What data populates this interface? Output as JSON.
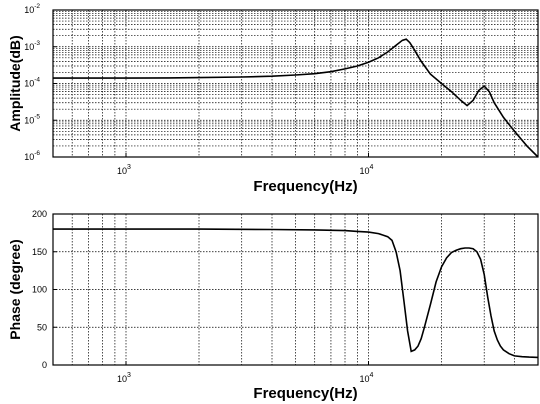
{
  "chart_data": [
    {
      "type": "line",
      "xlabel": "Frequency(Hz)",
      "ylabel": "Amplitude(dB)",
      "xscale": "log",
      "yscale": "log",
      "xlim": [
        500,
        50000
      ],
      "ylim": [
        1e-06,
        0.01
      ],
      "grid": true,
      "x_ticks": [
        {
          "value": 1000,
          "base": "10",
          "exp": "3"
        },
        {
          "value": 10000,
          "base": "10",
          "exp": "4"
        }
      ],
      "y_ticks": [
        {
          "value": 1e-06,
          "base": "10",
          "exp": "-6"
        },
        {
          "value": 1e-05,
          "base": "10",
          "exp": "-5"
        },
        {
          "value": 0.0001,
          "base": "10",
          "exp": "-4"
        },
        {
          "value": 0.001,
          "base": "10",
          "exp": "-3"
        },
        {
          "value": 0.01,
          "base": "10",
          "exp": "-2"
        }
      ],
      "series": [
        {
          "x": [
            500,
            700,
            1000,
            1500,
            2000,
            3000,
            4000,
            5000,
            6000,
            7000,
            8000,
            9000,
            10000,
            11000,
            12000,
            13000,
            13800,
            14300,
            14800,
            15500,
            16500,
            18000,
            20000,
            22000,
            24000,
            25500,
            27000,
            28500,
            30000,
            31500,
            33000,
            36000,
            40000,
            45000,
            50000
          ],
          "y": [
            0.00014,
            0.00014,
            0.00014,
            0.000142,
            0.000145,
            0.00015,
            0.000158,
            0.00017,
            0.000185,
            0.00021,
            0.00025,
            0.0003,
            0.00038,
            0.0005,
            0.00072,
            0.0011,
            0.0015,
            0.0016,
            0.0013,
            0.0008,
            0.0004,
            0.00018,
            0.0001,
            6e-05,
            3.5e-05,
            2.5e-05,
            3.5e-05,
            6.5e-05,
            8.5e-05,
            6e-05,
            3e-05,
            1.2e-05,
            5e-06,
            2e-06,
            1e-06
          ]
        }
      ]
    },
    {
      "type": "line",
      "xlabel": "Frequency(Hz)",
      "ylabel": "Phase (degree)",
      "xscale": "log",
      "xlim": [
        500,
        50000
      ],
      "ylim": [
        0,
        200
      ],
      "grid": true,
      "x_ticks": [
        {
          "value": 1000,
          "base": "10",
          "exp": "3"
        },
        {
          "value": 10000,
          "base": "10",
          "exp": "4"
        }
      ],
      "y_ticks": [
        "0",
        "50",
        "100",
        "150",
        "200"
      ],
      "series": [
        {
          "x": [
            500,
            1000,
            2000,
            4000,
            6000,
            8000,
            9000,
            10000,
            11000,
            12000,
            12500,
            13000,
            13500,
            14000,
            14500,
            15000,
            15500,
            16000,
            16500,
            17000,
            18000,
            19000,
            20000,
            21000,
            22000,
            23000,
            24000,
            25000,
            26000,
            27000,
            28000,
            29000,
            30000,
            31000,
            32000,
            33000,
            34000,
            35000,
            36000,
            38000,
            40000,
            43000,
            46000,
            50000
          ],
          "y": [
            180,
            180,
            180,
            179.5,
            179,
            178,
            177,
            176,
            174,
            170,
            165,
            150,
            125,
            85,
            45,
            18,
            20,
            25,
            35,
            50,
            80,
            110,
            130,
            142,
            149,
            152,
            154,
            155,
            155,
            154,
            150,
            140,
            120,
            90,
            65,
            45,
            33,
            25,
            20,
            15,
            12,
            11,
            10.5,
            10
          ]
        }
      ]
    }
  ]
}
